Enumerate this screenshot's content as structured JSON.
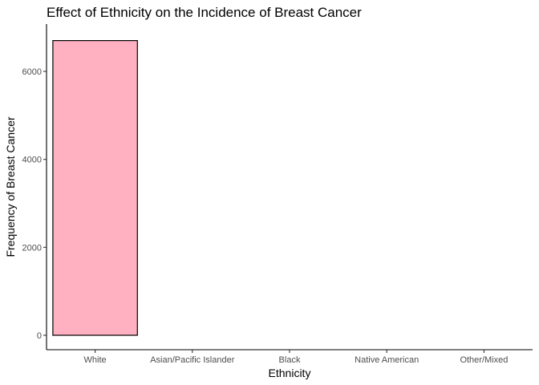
{
  "chart_data": {
    "type": "bar",
    "title": "Effect of Ethnicity on the Incidence of Breast Cancer",
    "xlabel": "Ethnicity",
    "ylabel": "Frequency of Breast Cancer",
    "categories": [
      "White",
      "Asian/Pacific Islander",
      "Black",
      "Native American",
      "Other/Mixed"
    ],
    "values": [
      6700,
      0,
      0,
      0,
      0
    ],
    "ylim": [
      0,
      7000
    ],
    "yticks": [
      0,
      2000,
      4000,
      6000
    ],
    "ytick_labels": [
      "0",
      "2000",
      "4000",
      "6000"
    ],
    "grid": false,
    "legend": "none",
    "colors": {
      "bar_fill": "#ffb0c1",
      "bar_stroke": "#000000",
      "axis": "#000000",
      "tick_text": "#4d4d4d"
    }
  }
}
